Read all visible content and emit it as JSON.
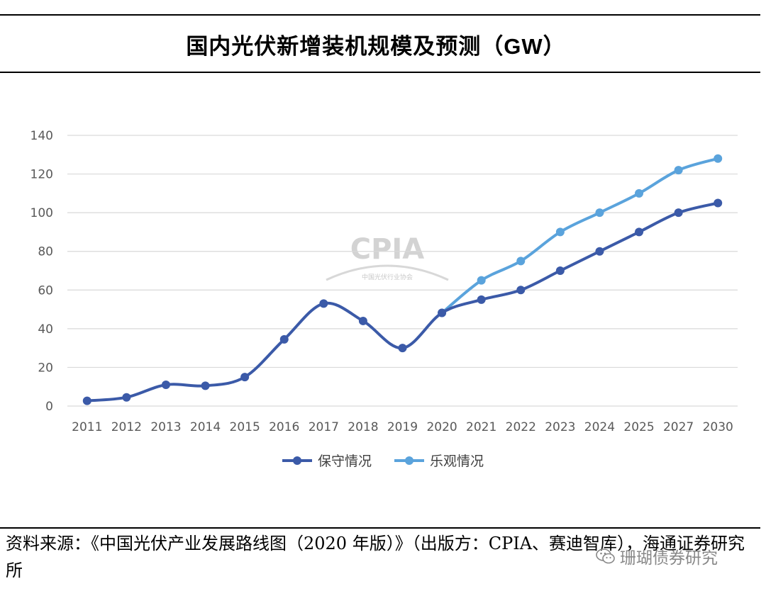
{
  "title": {
    "main": "国内光伏新增装机规模及预测",
    "unit": "（GW）"
  },
  "chart_data": {
    "type": "line",
    "title": "国内光伏新增装机规模及预测（GW）",
    "categories": [
      "2011",
      "2012",
      "2013",
      "2014",
      "2015",
      "2016",
      "2017",
      "2018",
      "2019",
      "2020",
      "2021",
      "2022",
      "2023",
      "2024",
      "2025",
      "2027",
      "2030"
    ],
    "ylim": [
      0,
      140
    ],
    "yticks": [
      0,
      20,
      40,
      60,
      80,
      100,
      120,
      140
    ],
    "grid": true,
    "legend_position": "bottom",
    "series": [
      {
        "name": "保守情况",
        "color": "#3b5aa8",
        "values": [
          2.7,
          4.5,
          11,
          10.5,
          15,
          34.5,
          53,
          44,
          30,
          48.2,
          55,
          60,
          70,
          80,
          90,
          100,
          105
        ]
      },
      {
        "name": "乐观情况",
        "color": "#5aa3dc",
        "values": [
          null,
          null,
          null,
          null,
          null,
          null,
          null,
          null,
          null,
          48.2,
          65,
          75,
          90,
          100,
          110,
          122,
          128
        ]
      }
    ],
    "watermark": {
      "logo_text": "CPIA",
      "subtitle": "中国光伏行业协会"
    }
  },
  "source": {
    "text": "资料来源：《中国光伏产业发展路线图（2020 年版）》（出版方：CPIA、赛迪智库），海通证券研究所"
  },
  "account": {
    "name": "珊瑚债券研究",
    "icon": "wechat-icon"
  }
}
